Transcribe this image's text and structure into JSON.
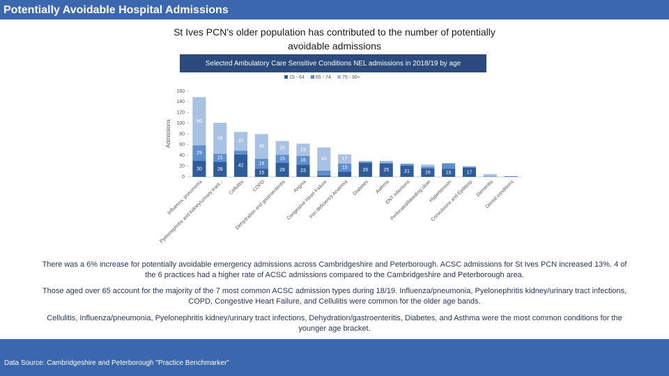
{
  "header": {
    "title": "Potentially Avoidable Hospital Admissions"
  },
  "subtitle": "St Ives PCN's older population has contributed to the number of potentially avoidable admissions",
  "chart_data": {
    "type": "bar",
    "stacked": true,
    "title": "Selected Ambulatory Care Sensitive Conditions NEL admissions in 2018/19 by age",
    "y_label": "Admissions",
    "categories": [
      "Influenza, pneumonia",
      "Pyelonephritis and kidney/urinary tract...",
      "Cellulitis",
      "COPD",
      "Dehydration and gastroenteritis",
      "Angina",
      "Congestive Heart Failure",
      "Iron deficiency Anaemia",
      "Diabetes",
      "Asthma",
      "ENT infections",
      "Perforated/bleeding ulcer",
      "Hypertension",
      "Convulsions and Epilepsy",
      "Dementia",
      "Dental conditions"
    ],
    "series": [
      {
        "name": "15 - 64",
        "color": "#2f5d9b",
        "values": [
          30,
          28,
          42,
          15,
          26,
          23,
          3,
          10,
          26,
          25,
          21,
          16,
          15,
          17,
          0,
          1
        ]
      },
      {
        "name": "65 - 74",
        "color": "#5d8fcf",
        "values": [
          29,
          15,
          7,
          19,
          15,
          16,
          9,
          15,
          2,
          2,
          3,
          3,
          10,
          2,
          1,
          0
        ]
      },
      {
        "name": "75 - 90+",
        "color": "#a9c2e4",
        "values": [
          90,
          58,
          35,
          46,
          26,
          23,
          43,
          17,
          2,
          3,
          1,
          4,
          1,
          1,
          4,
          0
        ]
      }
    ],
    "ylim": [
      0,
      160
    ],
    "yticks": [
      0,
      20,
      40,
      60,
      80,
      100,
      120,
      140,
      160
    ]
  },
  "paragraphs": [
    "There was a 6% increase for potentially avoidable emergency admissions across Cambridgeshire and Peterborough. ACSC admissions for St Ives PCN increased 13%. 4 of the 6 practices had a higher rate of ACSC admissions compared to the Cambridgeshire and Peterborough area.",
    "Those aged over 65 account for the majority of the 7 most common ACSC admission types during 18/19. Influenza/pneumonia, Pyelonephritis kidney/urinary tract infections, COPD, Congestive Heart Failure, and Cellulitis were common for the older age bands.",
    "Cellulitis, Influenza/pneumonia, Pyelonephritis kidney/urinary tract infections, Dehydration/gastroenteritis, Diabetes, and Asthma were the most common conditions for the younger age bracket."
  ],
  "footer": {
    "source": "Data Source: Cambridgeshire and Peterborough \"Practice Benchmarker\""
  }
}
